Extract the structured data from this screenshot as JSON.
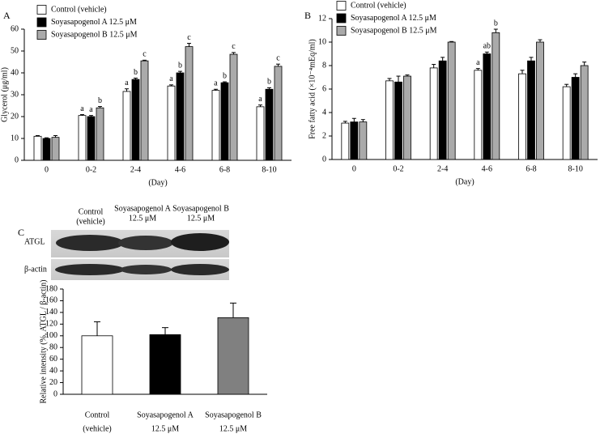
{
  "chart_data": [
    {
      "type": "bar",
      "panel": "A",
      "ylabel": "Glycerol (μg/ml)",
      "xlabel": "(Day)",
      "categories": [
        "0",
        "0-2",
        "2-4",
        "4-6",
        "6-8",
        "8-10"
      ],
      "ylim": [
        0,
        60
      ],
      "yticks": [
        0,
        10,
        20,
        30,
        40,
        50,
        60
      ],
      "legend": "top-left",
      "series": [
        {
          "name": "Control (vehicle)",
          "color": "#ffffff",
          "values": [
            11,
            20.5,
            31.5,
            34,
            32,
            24.5
          ],
          "errors": [
            0.3,
            0.4,
            1.2,
            0.5,
            0.5,
            0.8
          ],
          "letters": [
            null,
            "a",
            "a",
            "a",
            "a",
            "a"
          ]
        },
        {
          "name": "Soyasapogenol A 12.5 μM",
          "color": "#000000",
          "values": [
            10,
            20,
            37,
            40,
            35.5,
            32.5
          ],
          "errors": [
            0.3,
            0.5,
            0.6,
            0.7,
            0.4,
            0.7
          ],
          "letters": [
            null,
            "a",
            "b",
            "b",
            "b",
            "b"
          ]
        },
        {
          "name": "Soyasapogenol B 12.5 μM",
          "color": "#aaaaaa",
          "values": [
            10.5,
            24,
            45.5,
            52,
            48.5,
            43
          ],
          "errors": [
            0.8,
            0.6,
            0.3,
            1.5,
            0.8,
            1.0
          ],
          "letters": [
            null,
            "b",
            "c",
            "c",
            "c",
            "c"
          ]
        }
      ]
    },
    {
      "type": "bar",
      "panel": "B",
      "ylabel": "Free fatty acid (×10⁻⁴mEq/ml)",
      "xlabel": "(Day)",
      "categories": [
        "0",
        "0-2",
        "2-4",
        "4-6",
        "6-8",
        "8-10"
      ],
      "ylim": [
        0,
        12
      ],
      "yticks": [
        0,
        2,
        4,
        6,
        8,
        10,
        12
      ],
      "legend": "top-left",
      "series": [
        {
          "name": "Control (vehicle)",
          "color": "#ffffff",
          "values": [
            3.1,
            6.7,
            7.8,
            7.6,
            7.3,
            6.2
          ],
          "errors": [
            0.15,
            0.2,
            0.3,
            0.15,
            0.3,
            0.2
          ],
          "letters": [
            null,
            null,
            null,
            "a",
            null,
            null
          ]
        },
        {
          "name": "Soyasapogenol A 12.5 μM",
          "color": "#000000",
          "values": [
            3.2,
            6.6,
            8.4,
            9.0,
            8.4,
            7.0
          ],
          "errors": [
            0.3,
            0.5,
            0.3,
            0.15,
            0.3,
            0.3
          ],
          "letters": [
            null,
            null,
            null,
            "ab",
            null,
            null
          ]
        },
        {
          "name": "Soyasapogenol B 12.5 μM",
          "color": "#aaaaaa",
          "values": [
            3.2,
            7.1,
            10.0,
            10.8,
            10.0,
            8.0
          ],
          "errors": [
            0.2,
            0.1,
            0.05,
            0.3,
            0.2,
            0.3
          ],
          "letters": [
            null,
            null,
            null,
            "b",
            null,
            null
          ]
        }
      ]
    },
    {
      "type": "bar",
      "ylabel": "Relative intensity (%, ATGL / β-actin)",
      "categories": [
        [
          "Control",
          "(vehicle)"
        ],
        [
          "Soyasapogenol A",
          "12.5 μM"
        ],
        [
          "Soyasapogenol B",
          "12.5 μM"
        ]
      ],
      "ylim": [
        0,
        180
      ],
      "yticks": [
        0,
        20,
        40,
        60,
        80,
        100,
        120,
        140,
        160,
        180
      ],
      "values": [
        100,
        102,
        131
      ],
      "errors": [
        24,
        12,
        25
      ],
      "colors": [
        "#ffffff",
        "#000000",
        "#808080"
      ]
    }
  ],
  "blot": {
    "panel": "C",
    "lanes": [
      [
        "Control",
        "(vehicle)"
      ],
      [
        "Soyasapogenol A",
        "12.5 μM"
      ],
      [
        "Soyasapogenol B",
        "12.5 μM"
      ]
    ],
    "rows": [
      "ATGL",
      "β-actin"
    ]
  }
}
